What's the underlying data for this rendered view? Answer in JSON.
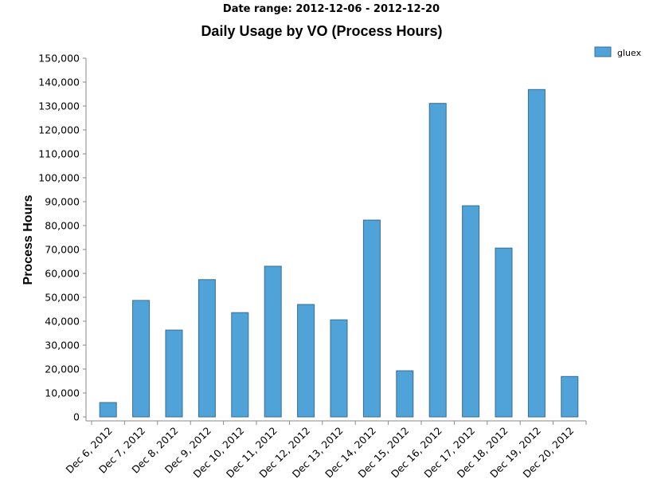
{
  "header": {
    "subtitle": "Date range: 2012-12-06 - 2012-12-20",
    "title": "Daily Usage by VO (Process Hours)"
  },
  "chart_data": {
    "type": "bar",
    "title": "Daily Usage by VO (Process Hours)",
    "subtitle": "Date range: 2012-12-06 - 2012-12-20",
    "xlabel": "",
    "ylabel": "Process Hours",
    "ylim": [
      0,
      150000
    ],
    "yticks": [
      "0",
      "10,000",
      "20,000",
      "30,000",
      "40,000",
      "50,000",
      "60,000",
      "70,000",
      "80,000",
      "90,000",
      "100,000",
      "110,000",
      "120,000",
      "130,000",
      "140,000",
      "150,000"
    ],
    "categories": [
      "Dec 6, 2012",
      "Dec 7, 2012",
      "Dec 8, 2012",
      "Dec 9, 2012",
      "Dec 10, 2012",
      "Dec 11, 2012",
      "Dec 12, 2012",
      "Dec 13, 2012",
      "Dec 14, 2012",
      "Dec 15, 2012",
      "Dec 16, 2012",
      "Dec 17, 2012",
      "Dec 18, 2012",
      "Dec 19, 2012",
      "Dec 20, 2012"
    ],
    "series": [
      {
        "name": "gluex",
        "color": "#4fa3d9",
        "values": [
          6000,
          48700,
          36300,
          57400,
          43600,
          63000,
          47000,
          40600,
          82300,
          19300,
          131100,
          88300,
          70600,
          136900,
          16900
        ]
      }
    ],
    "legend_position": "top-right",
    "grid": false
  }
}
